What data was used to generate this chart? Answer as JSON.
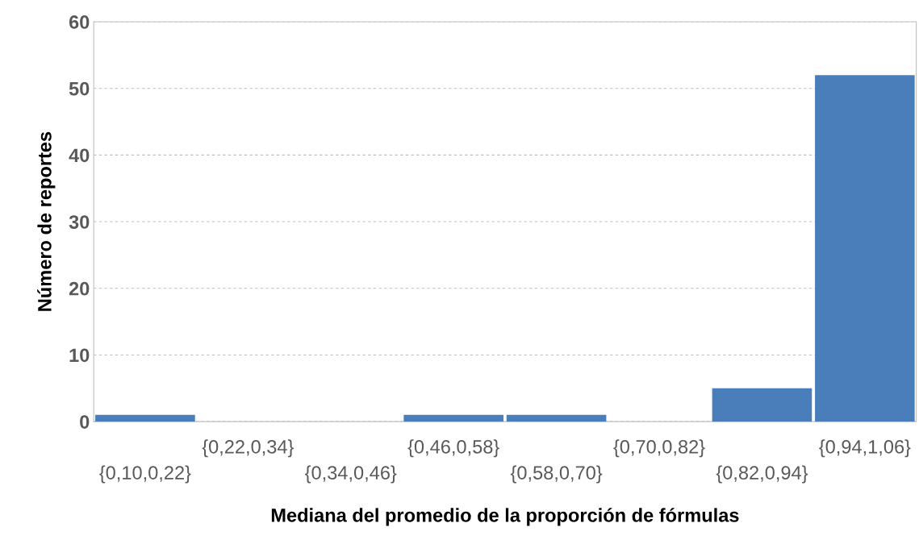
{
  "chart_data": {
    "type": "bar",
    "xlabel": "Mediana del promedio de la proporción de fórmulas",
    "ylabel": "Número de reportes",
    "categories": [
      "{0,10,0,22}",
      "{0,22,0,34}",
      "{0,34,0,46}",
      "{0,46,0,58}",
      "{0,58,0,70}",
      "{0,70,0,82}",
      "{0,82,0,94}",
      "{0,94,1,06}"
    ],
    "values": [
      1,
      0,
      0,
      1,
      1,
      0,
      5,
      52
    ],
    "color": "#4a7ebb",
    "ylim": [
      0,
      60
    ],
    "yticks": [
      0,
      10,
      20,
      30,
      40,
      50,
      60
    ],
    "grid": "y"
  }
}
